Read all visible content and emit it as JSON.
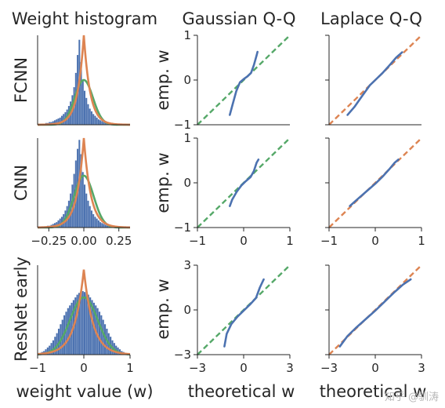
{
  "colors": {
    "blue": "#4c72b0",
    "orange": "#dd8452",
    "green": "#55a868",
    "text": "#262626"
  },
  "column_titles": [
    "Weight histogram",
    "Gaussian Q-Q",
    "Laplace Q-Q"
  ],
  "row_labels": [
    "FCNN",
    "CNN",
    "ResNet early"
  ],
  "xlabels": {
    "hist": "weight value (w)",
    "qq": "theoretical w"
  },
  "ylabel": "emp. w",
  "watermark": "知乎 @驯涛",
  "chart_data": [
    {
      "type": "bar",
      "panel": "FCNN histogram",
      "row": 0,
      "col": 0,
      "xlim": [
        -0.33,
        0.33
      ],
      "ylim": [
        0,
        1
      ],
      "bins": {
        "start": -0.3,
        "width": 0.0125,
        "heights": [
          0.01,
          0.01,
          0.02,
          0.02,
          0.03,
          0.03,
          0.04,
          0.05,
          0.06,
          0.07,
          0.08,
          0.1,
          0.12,
          0.14,
          0.17,
          0.21,
          0.26,
          0.33,
          0.42,
          0.58,
          0.78,
          0.95,
          0.7,
          0.5,
          0.38,
          0.3,
          0.23,
          0.18,
          0.15,
          0.12,
          0.1,
          0.08,
          0.06,
          0.05,
          0.04,
          0.03,
          0.03,
          0.02,
          0.02,
          0.01,
          0.01,
          0.01,
          0.01,
          0.01,
          0.01,
          0.01,
          0.01,
          0.01
        ]
      },
      "curves": [
        {
          "name": "Gaussian fit",
          "color": "green",
          "kind": "gauss",
          "mu": 0,
          "sigma": 0.065,
          "peak": 0.5
        },
        {
          "name": "Laplace fit",
          "color": "orange",
          "kind": "laplace",
          "mu": 0,
          "b": 0.045,
          "peak": 1.0
        }
      ]
    },
    {
      "type": "bar",
      "panel": "CNN histogram",
      "row": 1,
      "col": 0,
      "xlim": [
        -0.33,
        0.33
      ],
      "ylim": [
        0,
        1
      ],
      "xticks": [
        -0.25,
        0.0,
        0.25
      ],
      "xticklabels": [
        "−0.25",
        "0.00",
        "0.25"
      ],
      "bins": {
        "start": -0.3,
        "width": 0.0125,
        "heights": [
          0.01,
          0.01,
          0.01,
          0.02,
          0.02,
          0.03,
          0.04,
          0.05,
          0.06,
          0.08,
          0.1,
          0.12,
          0.15,
          0.19,
          0.24,
          0.3,
          0.38,
          0.48,
          0.6,
          0.75,
          0.88,
          0.98,
          0.82,
          0.62,
          0.48,
          0.38,
          0.3,
          0.24,
          0.19,
          0.15,
          0.12,
          0.1,
          0.08,
          0.06,
          0.05,
          0.04,
          0.03,
          0.02,
          0.02,
          0.01,
          0.01,
          0.01,
          0.01,
          0.01,
          0.01,
          0.01,
          0.01,
          0.01
        ]
      },
      "curves": [
        {
          "name": "Gaussian fit",
          "color": "green",
          "kind": "gauss",
          "mu": 0,
          "sigma": 0.07,
          "peak": 0.58
        },
        {
          "name": "Laplace fit",
          "color": "orange",
          "kind": "laplace",
          "mu": 0,
          "b": 0.05,
          "peak": 1.0
        }
      ]
    },
    {
      "type": "bar",
      "panel": "ResNet early histogram",
      "row": 2,
      "col": 0,
      "xlim": [
        -1,
        1
      ],
      "ylim": [
        0,
        1
      ],
      "xticks": [
        -1,
        0,
        1
      ],
      "xticklabels": [
        "−1",
        "0",
        "1"
      ],
      "bins": {
        "start": -1,
        "width": 0.04,
        "heights": [
          0.01,
          0.02,
          0.03,
          0.04,
          0.06,
          0.08,
          0.1,
          0.13,
          0.16,
          0.2,
          0.24,
          0.29,
          0.34,
          0.39,
          0.44,
          0.48,
          0.52,
          0.55,
          0.58,
          0.61,
          0.64,
          0.67,
          0.69,
          0.7,
          0.71,
          0.7,
          0.69,
          0.67,
          0.64,
          0.61,
          0.58,
          0.55,
          0.52,
          0.48,
          0.44,
          0.39,
          0.34,
          0.29,
          0.24,
          0.2,
          0.16,
          0.13,
          0.1,
          0.08,
          0.06,
          0.04,
          0.03,
          0.02,
          0.01,
          0.01
        ]
      },
      "curves": [
        {
          "name": "Gaussian fit",
          "color": "green",
          "kind": "gauss",
          "mu": 0,
          "sigma": 0.3,
          "peak": 0.64
        },
        {
          "name": "Laplace fit",
          "color": "orange",
          "kind": "laplace",
          "mu": 0,
          "b": 0.2,
          "peak": 0.95
        }
      ]
    },
    {
      "type": "line",
      "panel": "FCNN Gaussian Q-Q",
      "row": 0,
      "col": 1,
      "xlim": [
        -1,
        1
      ],
      "ylim": [
        -1,
        1
      ],
      "yticks": [
        -1,
        0,
        1
      ],
      "yticklabels": [
        "−1",
        "0",
        "1"
      ],
      "reference": {
        "color": "green",
        "dashed": true,
        "points": [
          [
            -1,
            -1
          ],
          [
            1,
            1
          ]
        ]
      },
      "series": [
        {
          "color": "blue",
          "points": [
            [
              -0.3,
              -0.78
            ],
            [
              -0.24,
              -0.55
            ],
            [
              -0.16,
              -0.25
            ],
            [
              -0.08,
              -0.05
            ],
            [
              0.0,
              0.02
            ],
            [
              0.08,
              0.08
            ],
            [
              0.16,
              0.16
            ],
            [
              0.22,
              0.33
            ],
            [
              0.28,
              0.55
            ],
            [
              0.3,
              0.63
            ]
          ]
        }
      ]
    },
    {
      "type": "line",
      "panel": "CNN Gaussian Q-Q",
      "row": 1,
      "col": 1,
      "xlim": [
        -1,
        1
      ],
      "ylim": [
        -1,
        1
      ],
      "xticks": [
        -1,
        0,
        1
      ],
      "xticklabels": [
        "−1",
        "0",
        "1"
      ],
      "yticks": [
        -1,
        0,
        1
      ],
      "yticklabels": [
        "−1",
        "0",
        "1"
      ],
      "reference": {
        "color": "green",
        "dashed": true,
        "points": [
          [
            -1,
            -1
          ],
          [
            1,
            1
          ]
        ]
      },
      "series": [
        {
          "color": "blue",
          "points": [
            [
              -0.3,
              -0.52
            ],
            [
              -0.25,
              -0.38
            ],
            [
              -0.15,
              -0.2
            ],
            [
              -0.05,
              -0.06
            ],
            [
              0.05,
              0.04
            ],
            [
              0.15,
              0.13
            ],
            [
              0.22,
              0.26
            ],
            [
              0.28,
              0.45
            ],
            [
              0.32,
              0.52
            ]
          ]
        }
      ]
    },
    {
      "type": "line",
      "panel": "ResNet early Gaussian Q-Q",
      "row": 2,
      "col": 1,
      "xlim": [
        -3,
        3
      ],
      "ylim": [
        -3,
        3
      ],
      "xticks": [
        -3,
        0,
        3
      ],
      "xticklabels": [
        "−3",
        "0",
        "3"
      ],
      "yticks": [
        -3,
        0,
        3
      ],
      "yticklabels": [
        "−3",
        "0",
        "3"
      ],
      "reference": {
        "color": "green",
        "dashed": true,
        "points": [
          [
            -3,
            -3
          ],
          [
            3,
            3
          ]
        ]
      },
      "series": [
        {
          "color": "blue",
          "points": [
            [
              -1.25,
              -2.45
            ],
            [
              -1.1,
              -1.6
            ],
            [
              -0.8,
              -0.95
            ],
            [
              -0.4,
              -0.45
            ],
            [
              0.0,
              -0.05
            ],
            [
              0.4,
              0.35
            ],
            [
              0.8,
              0.8
            ],
            [
              1.05,
              1.5
            ],
            [
              1.3,
              2.05
            ]
          ]
        }
      ]
    },
    {
      "type": "line",
      "panel": "FCNN Laplace Q-Q",
      "row": 0,
      "col": 2,
      "xlim": [
        -1,
        1
      ],
      "ylim": [
        -1,
        1
      ],
      "reference": {
        "color": "orange",
        "dashed": true,
        "points": [
          [
            -1,
            -1
          ],
          [
            1,
            1
          ]
        ]
      },
      "series": [
        {
          "color": "blue",
          "points": [
            [
              -0.6,
              -0.78
            ],
            [
              -0.45,
              -0.6
            ],
            [
              -0.28,
              -0.35
            ],
            [
              -0.12,
              -0.12
            ],
            [
              0.0,
              0.0
            ],
            [
              0.15,
              0.15
            ],
            [
              0.3,
              0.32
            ],
            [
              0.45,
              0.5
            ],
            [
              0.58,
              0.62
            ]
          ]
        }
      ]
    },
    {
      "type": "line",
      "panel": "CNN Laplace Q-Q",
      "row": 1,
      "col": 2,
      "xlim": [
        -1,
        1
      ],
      "ylim": [
        -1,
        1
      ],
      "xticks": [
        -1,
        0,
        1
      ],
      "xticklabels": [
        "−1",
        "0",
        "1"
      ],
      "reference": {
        "color": "orange",
        "dashed": true,
        "points": [
          [
            -1,
            -1
          ],
          [
            1,
            1
          ]
        ]
      },
      "series": [
        {
          "color": "blue",
          "points": [
            [
              -0.55,
              -0.52
            ],
            [
              -0.4,
              -0.38
            ],
            [
              -0.2,
              -0.2
            ],
            [
              0.0,
              -0.02
            ],
            [
              0.15,
              0.13
            ],
            [
              0.3,
              0.3
            ],
            [
              0.42,
              0.45
            ],
            [
              0.5,
              0.52
            ]
          ]
        }
      ]
    },
    {
      "type": "line",
      "panel": "ResNet early Laplace Q-Q",
      "row": 2,
      "col": 2,
      "xlim": [
        -3,
        3
      ],
      "ylim": [
        -3,
        3
      ],
      "xticks": [
        -3,
        0,
        3
      ],
      "xticklabels": [
        "−3",
        "0",
        "3"
      ],
      "reference": {
        "color": "orange",
        "dashed": true,
        "points": [
          [
            -3,
            -3
          ],
          [
            3,
            3
          ]
        ]
      },
      "series": [
        {
          "color": "blue",
          "points": [
            [
              -2.3,
              -2.45
            ],
            [
              -1.8,
              -1.75
            ],
            [
              -1.2,
              -1.15
            ],
            [
              -0.6,
              -0.6
            ],
            [
              0.0,
              -0.05
            ],
            [
              0.6,
              0.55
            ],
            [
              1.2,
              1.15
            ],
            [
              1.8,
              1.7
            ],
            [
              2.3,
              2.05
            ]
          ]
        }
      ]
    }
  ]
}
